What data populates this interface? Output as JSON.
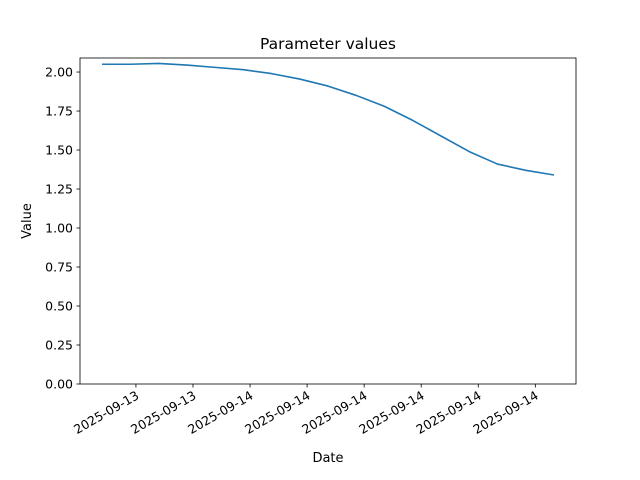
{
  "chart_data": {
    "type": "line",
    "title": "Parameter values",
    "x_label": "Date",
    "y_label": "Value",
    "series": [
      {
        "color": "#1f77b4",
        "values": [
          2.05,
          2.05,
          2.055,
          2.045,
          2.03,
          2.015,
          1.99,
          1.955,
          1.91,
          1.85,
          1.78,
          1.69,
          1.59,
          1.49,
          1.41,
          1.37,
          1.34
        ]
      }
    ],
    "xlim": [
      -0.78,
      16.78
    ],
    "xticks": [
      {
        "value": 1.2,
        "label": "2025-09-13"
      },
      {
        "value": 3.22,
        "label": "2025-09-13"
      },
      {
        "value": 5.24,
        "label": "2025-09-14"
      },
      {
        "value": 7.26,
        "label": "2025-09-14"
      },
      {
        "value": 9.28,
        "label": "2025-09-14"
      },
      {
        "value": 11.3,
        "label": "2025-09-14"
      },
      {
        "value": 13.32,
        "label": "2025-09-14"
      },
      {
        "value": 15.34,
        "label": "2025-09-14"
      }
    ],
    "ylim": [
      0,
      2.09
    ],
    "yticks": [
      {
        "value": 0,
        "label": "0.00"
      },
      {
        "value": 0.25,
        "label": "0.25"
      },
      {
        "value": 0.5,
        "label": "0.50"
      },
      {
        "value": 0.75,
        "label": "0.75"
      },
      {
        "value": 1,
        "label": "1.00"
      },
      {
        "value": 1.25,
        "label": "1.25"
      },
      {
        "value": 1.5,
        "label": "1.50"
      },
      {
        "value": 1.75,
        "label": "1.75"
      },
      {
        "value": 2,
        "label": "2.00"
      }
    ],
    "grid": false
  }
}
